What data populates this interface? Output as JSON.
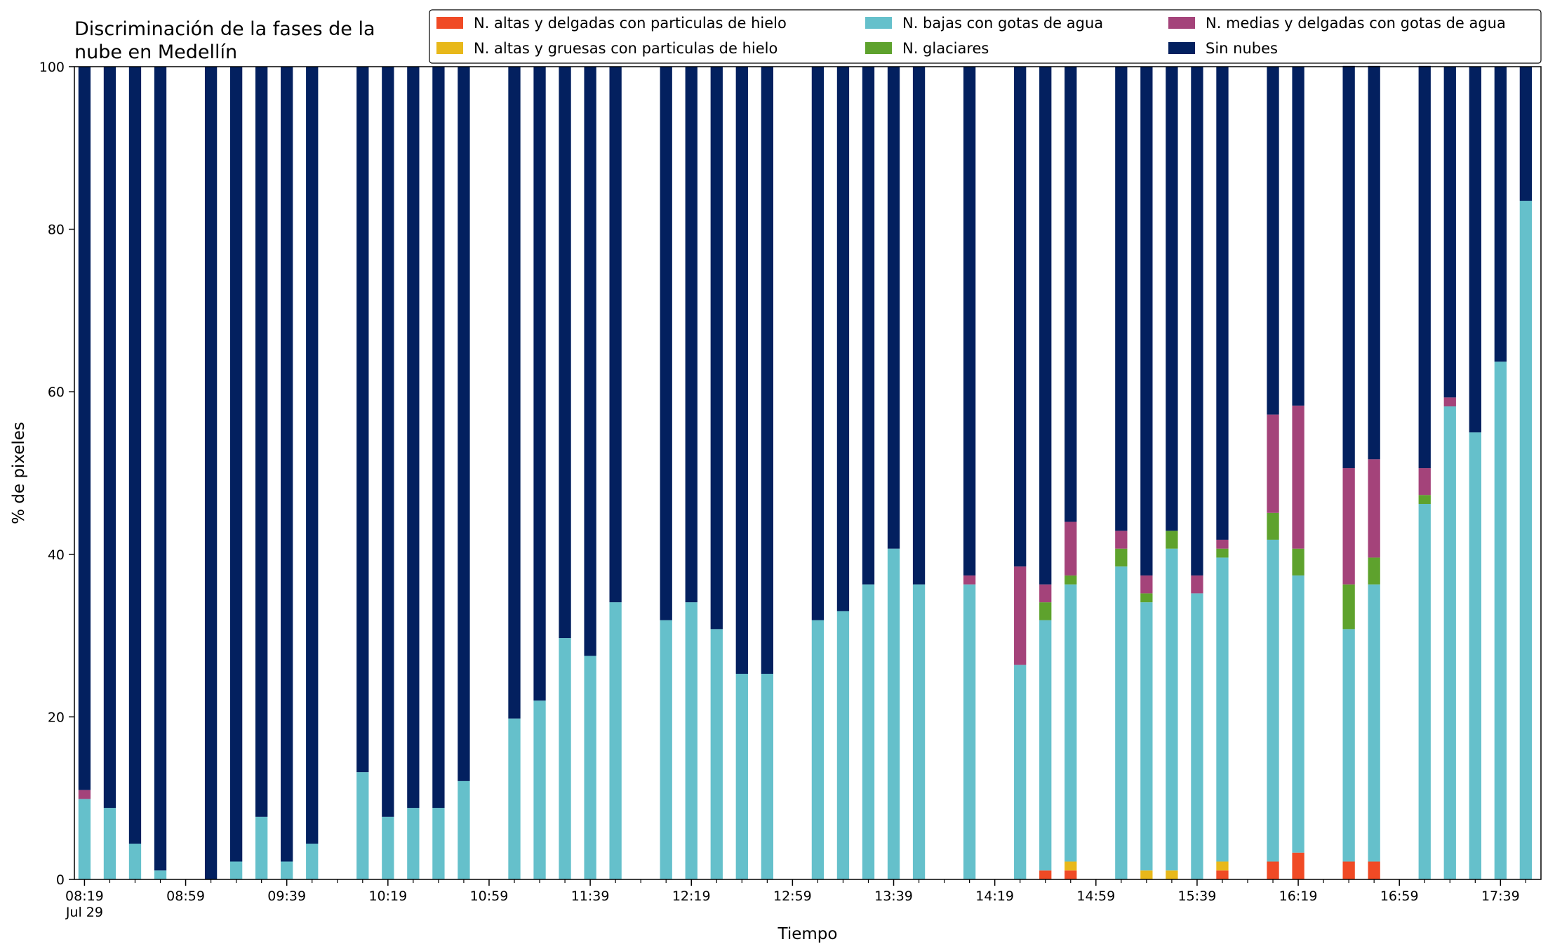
{
  "chart_data": {
    "type": "bar",
    "stacked": true,
    "title_lines": [
      "Discriminación de la fases de la",
      "nube en Medellín"
    ],
    "xlabel": "Tiempo",
    "ylabel": "% de pixeles",
    "ylim": [
      0,
      100
    ],
    "yticks": [
      "0",
      "20",
      "40",
      "60",
      "80",
      "100"
    ],
    "xlim_minutes": [
      495,
      1075
    ],
    "xticks": [
      {
        "t": 499,
        "label": "08:19",
        "label2": "Jul 29"
      },
      {
        "t": 539,
        "label": "08:59"
      },
      {
        "t": 579,
        "label": "09:39"
      },
      {
        "t": 619,
        "label": "10:19"
      },
      {
        "t": 659,
        "label": "10:59"
      },
      {
        "t": 699,
        "label": "11:39"
      },
      {
        "t": 739,
        "label": "12:19"
      },
      {
        "t": 779,
        "label": "12:59"
      },
      {
        "t": 819,
        "label": "13:39"
      },
      {
        "t": 859,
        "label": "14:19"
      },
      {
        "t": 899,
        "label": "14:59"
      },
      {
        "t": 939,
        "label": "15:39"
      },
      {
        "t": 979,
        "label": "16:19"
      },
      {
        "t": 1019,
        "label": "16:59"
      },
      {
        "t": 1059,
        "label": "17:39"
      }
    ],
    "bar_width_minutes": 4.8,
    "times": [
      "08:19",
      "08:29",
      "08:39",
      "08:49",
      "09:09",
      "09:19",
      "09:29",
      "09:39",
      "09:49",
      "10:09",
      "10:19",
      "10:29",
      "10:39",
      "10:49",
      "11:09",
      "11:19",
      "11:29",
      "11:39",
      "11:49",
      "12:09",
      "12:19",
      "12:29",
      "12:39",
      "12:49",
      "13:09",
      "13:19",
      "13:29",
      "13:39",
      "13:49",
      "14:09",
      "14:29",
      "14:39",
      "14:49",
      "15:09",
      "15:19",
      "15:29",
      "15:39",
      "15:49",
      "16:09",
      "16:19",
      "16:39",
      "16:49",
      "17:09",
      "17:19",
      "17:29",
      "17:39",
      "17:49"
    ],
    "series": [
      {
        "name": "N. altas y delgadas con particulas de hielo",
        "color": "#f04a25",
        "values": [
          0,
          0,
          0,
          0,
          0,
          0,
          0,
          0,
          0,
          0,
          0,
          0,
          0,
          0,
          0,
          0,
          0,
          0,
          0,
          0,
          0,
          0,
          0,
          0,
          0,
          0,
          0,
          0,
          0,
          0,
          0,
          1.1,
          1.1,
          0,
          0,
          0,
          0,
          1.1,
          2.2,
          3.3,
          2.2,
          2.2,
          0,
          0,
          0,
          0,
          0
        ]
      },
      {
        "name": "N. altas y gruesas con particulas de hielo",
        "color": "#e8b81a",
        "values": [
          0,
          0,
          0,
          0,
          0,
          0,
          0,
          0,
          0,
          0,
          0,
          0,
          0,
          0,
          0,
          0,
          0,
          0,
          0,
          0,
          0,
          0,
          0,
          0,
          0,
          0,
          0,
          0,
          0,
          0,
          0,
          0,
          1.1,
          0,
          1.1,
          1.1,
          0,
          1.1,
          0,
          0,
          0,
          0,
          0,
          0,
          0,
          0,
          0
        ]
      },
      {
        "name": "N. bajas con gotas de agua",
        "color": "#65c0cb",
        "values": [
          9.9,
          8.8,
          4.4,
          1.1,
          0,
          2.2,
          7.7,
          2.2,
          4.4,
          13.2,
          7.7,
          8.8,
          8.8,
          12.1,
          19.8,
          22,
          29.7,
          27.5,
          34.1,
          31.9,
          34.1,
          30.8,
          25.3,
          25.3,
          31.9,
          33,
          36.3,
          40.7,
          36.3,
          36.3,
          26.4,
          30.8,
          34.1,
          38.5,
          33,
          39.6,
          35.2,
          37.4,
          39.6,
          34.1,
          28.6,
          34.1,
          46.2,
          58.2,
          55,
          63.7,
          83.5
        ]
      },
      {
        "name": "N. glaciares",
        "color": "#5ea22d",
        "values": [
          0,
          0,
          0,
          0,
          0,
          0,
          0,
          0,
          0,
          0,
          0,
          0,
          0,
          0,
          0,
          0,
          0,
          0,
          0,
          0,
          0,
          0,
          0,
          0,
          0,
          0,
          0,
          0,
          0,
          0,
          0,
          2.2,
          1.1,
          2.2,
          1.1,
          2.2,
          0,
          1.1,
          3.3,
          3.3,
          5.5,
          3.3,
          1.1,
          0,
          0,
          0,
          0
        ]
      },
      {
        "name": "N. medias y delgadas con gotas de agua",
        "color": "#a4437a",
        "values": [
          1.1,
          0,
          0,
          0,
          0,
          0,
          0,
          0,
          0,
          0,
          0,
          0,
          0,
          0,
          0,
          0,
          0,
          0,
          0,
          0,
          0,
          0,
          0,
          0,
          0,
          0,
          0,
          0,
          0,
          1.1,
          12.1,
          2.2,
          6.6,
          2.2,
          2.2,
          0,
          2.2,
          1.1,
          12.1,
          17.6,
          14.3,
          12.1,
          3.3,
          1.1,
          0,
          0,
          0
        ]
      },
      {
        "name": "Sin nubes",
        "color": "#03205f",
        "values": [
          89,
          91.2,
          95.6,
          98.9,
          100,
          97.8,
          92.3,
          97.8,
          95.6,
          86.8,
          92.3,
          91.2,
          91.2,
          87.9,
          80.2,
          78,
          70.3,
          72.5,
          65.9,
          68.1,
          65.9,
          69.2,
          74.7,
          74.7,
          68.1,
          67,
          63.7,
          59.3,
          63.7,
          62.6,
          61.5,
          63.7,
          56,
          57.1,
          62.6,
          57.1,
          62.6,
          58.2,
          42.8,
          41.7,
          49.5,
          48.4,
          49.5,
          40.7,
          45,
          36.3,
          16.5
        ]
      }
    ],
    "legend": {
      "placement": "top-right",
      "columns": [
        [
          "N. altas y delgadas con particulas de hielo",
          "N. altas y gruesas con particulas de hielo"
        ],
        [
          "N. bajas con gotas de agua",
          "N. glaciares"
        ],
        [
          "N. medias y delgadas con gotas de agua",
          "Sin nubes"
        ]
      ]
    },
    "grid": false
  }
}
